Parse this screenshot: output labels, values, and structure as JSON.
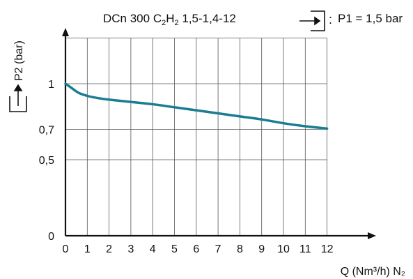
{
  "header": {
    "title_main": "DCn 300 C",
    "title_sub1": "2",
    "title_mid": "H",
    "title_sub2": "2",
    "title_tail": " 1,5-1,4-12",
    "inlet_separator": ":",
    "inlet_pressure": "P1 = 1,5 bar",
    "inlet_icon": "inlet-arrow-into-box-icon",
    "outlet_icon": "outlet-arrow-out-of-box-icon"
  },
  "chart_data": {
    "type": "line",
    "title": "DCn 300 C2H2 1,5-1,4-12",
    "xlabel": "Q (Nm³/h) N₂",
    "ylabel": "P2 (bar)",
    "xlim": [
      0,
      12.8
    ],
    "ylim": [
      0,
      1.4
    ],
    "grid": true,
    "x_ticks": [
      0,
      1,
      2,
      3,
      4,
      5,
      6,
      7,
      8,
      9,
      10,
      11,
      12
    ],
    "x_tick_labels": [
      "0",
      "1",
      "2",
      "3",
      "4",
      "5",
      "6",
      "7",
      "8",
      "9",
      "10",
      "11",
      "12"
    ],
    "y_ticks": [
      0,
      0.5,
      0.7,
      1
    ],
    "y_tick_labels": [
      "0",
      "0,5",
      "0,7",
      "1"
    ],
    "series": [
      {
        "color": "#1a7d92",
        "x": [
          0,
          0.3,
          0.6,
          1,
          1.5,
          2,
          3,
          4,
          5,
          6,
          7,
          8,
          9,
          10,
          11,
          12
        ],
        "y": [
          1.0,
          0.97,
          0.94,
          0.92,
          0.905,
          0.895,
          0.88,
          0.865,
          0.845,
          0.825,
          0.805,
          0.785,
          0.765,
          0.74,
          0.72,
          0.705
        ]
      }
    ]
  }
}
